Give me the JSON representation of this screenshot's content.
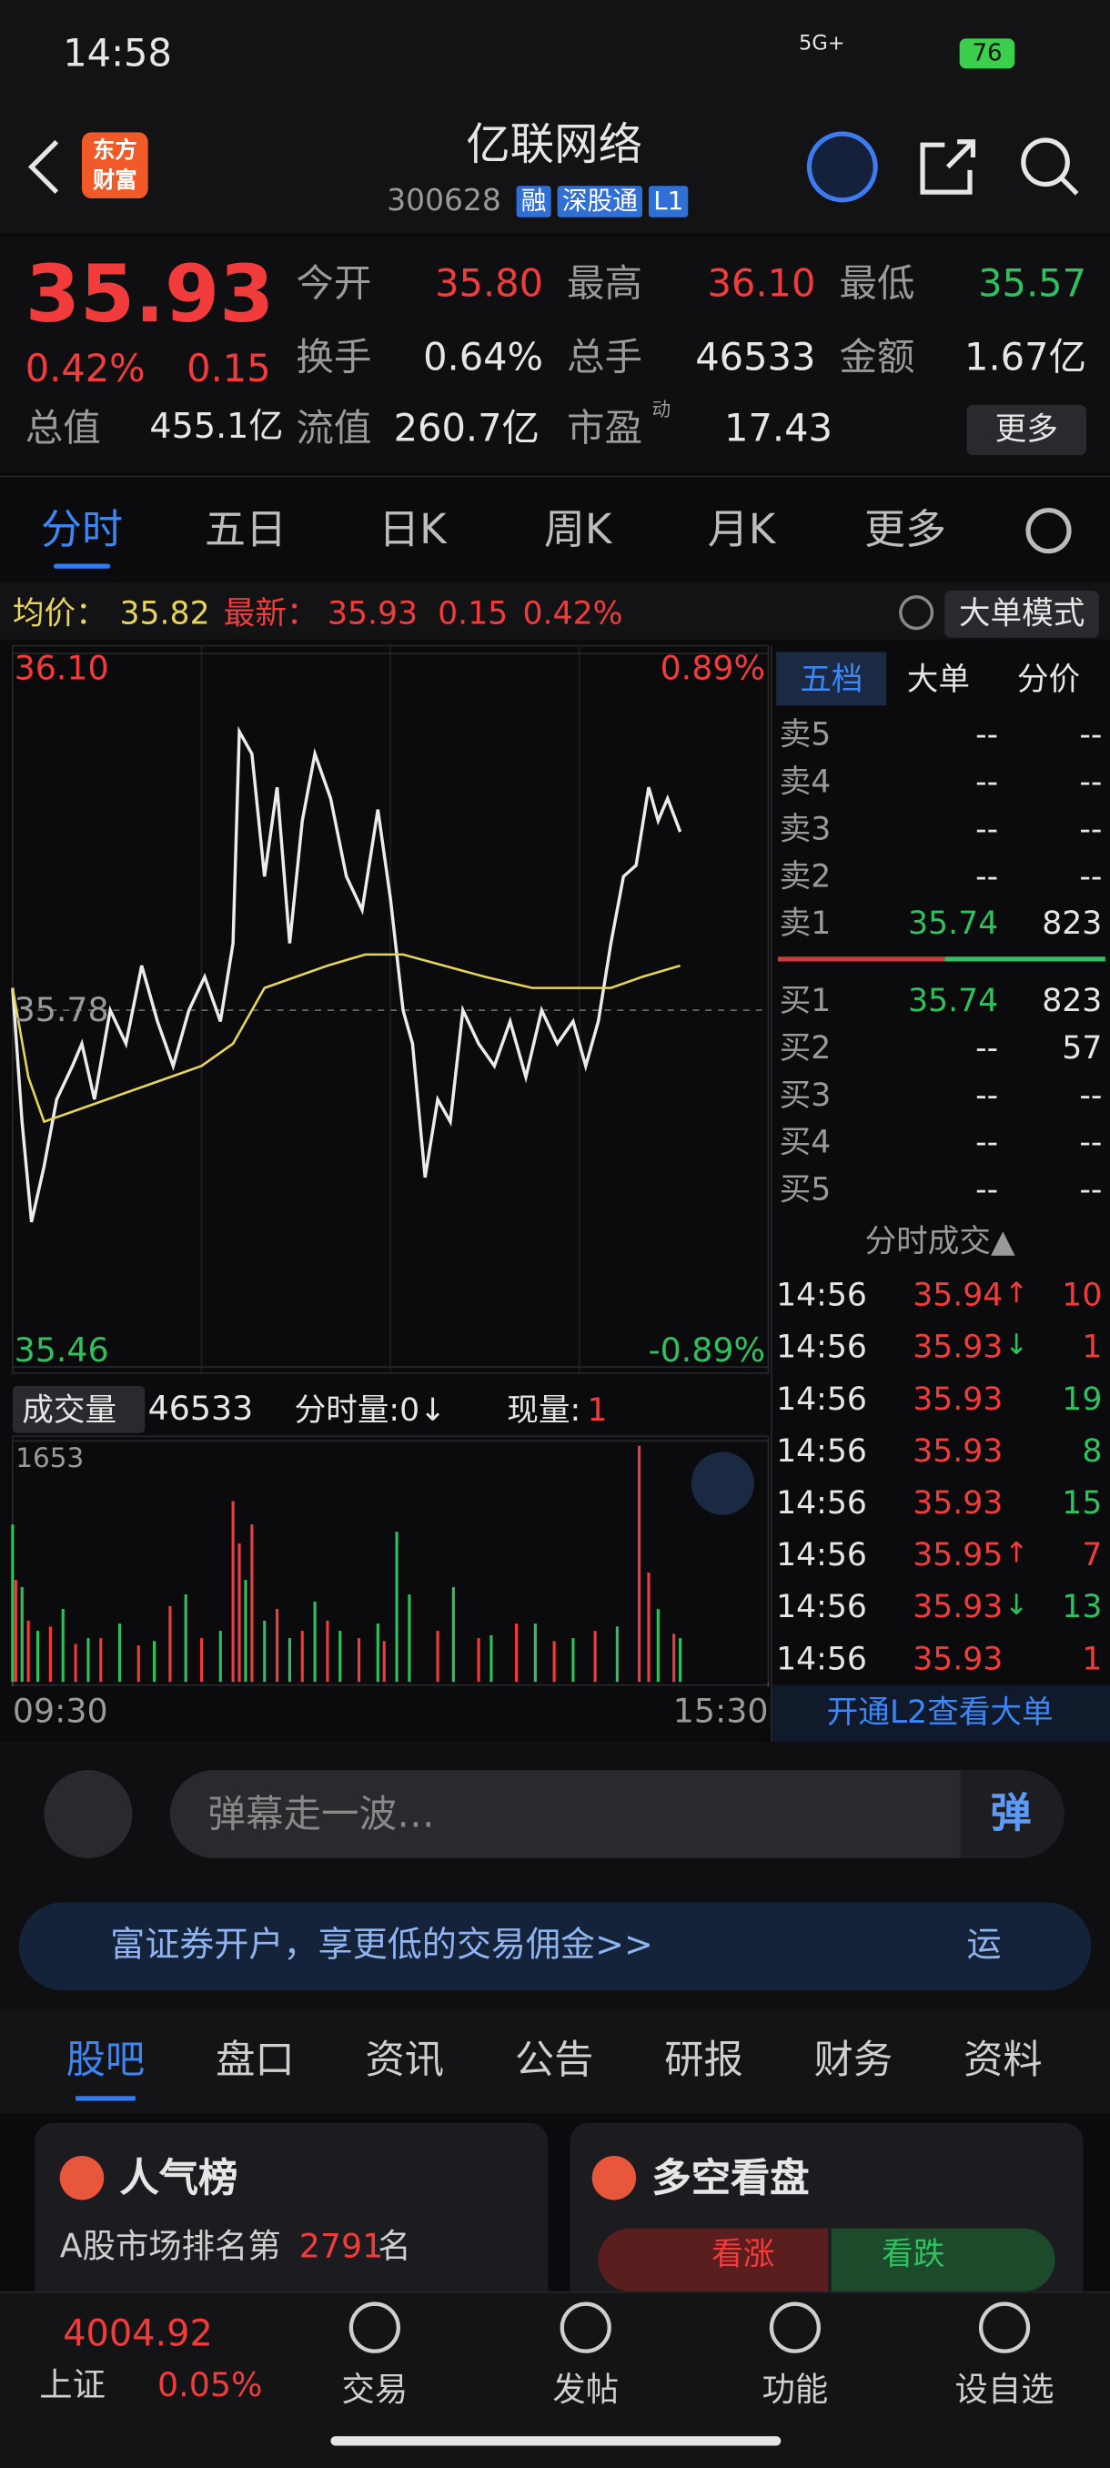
{
  "status_bar": {
    "time": "14:58",
    "network": "5G+",
    "battery": "76"
  },
  "header": {
    "logo": [
      "东方",
      "财富"
    ],
    "title": "亿联网络",
    "code": "300628",
    "tags": [
      "融",
      "深股通",
      "L1"
    ]
  },
  "quote": {
    "price": "35.93",
    "change_pct": "0.42%",
    "change": "0.15",
    "fields": [
      {
        "label": "今开",
        "value": "35.80",
        "color": "#f23c3c"
      },
      {
        "label": "最高",
        "value": "36.10",
        "color": "#f23c3c"
      },
      {
        "label": "最低",
        "value": "35.57",
        "color": "#2fc15f"
      },
      {
        "label": "换手",
        "value": "0.64%"
      },
      {
        "label": "总手",
        "value": "46533"
      },
      {
        "label": "金额",
        "value": "1.67亿"
      },
      {
        "label": "总值",
        "value": "455.1亿"
      },
      {
        "label": "流值",
        "value": "260.7亿"
      },
      {
        "label": "市盈",
        "sup": "动",
        "value": "17.43"
      }
    ],
    "more": "更多"
  },
  "chart_tabs": [
    "分时",
    "五日",
    "日K",
    "周K",
    "月K",
    "更多"
  ],
  "info_line": {
    "avg_label": "均价：",
    "avg": "35.82",
    "last_label": "最新：",
    "last": "35.93",
    "change": "0.15",
    "change_pct": "0.42%",
    "mode": "大单模式"
  },
  "chart_data": [
    {
      "type": "line",
      "ylim": [
        35.46,
        36.1
      ],
      "yticks": [
        {
          "value": 36.1,
          "label": "36.10"
        },
        {
          "value": 35.78,
          "label": "35.78"
        },
        {
          "value": 35.46,
          "label": "35.46"
        }
      ],
      "pct_labels": [
        "0.89%",
        "-0.89%"
      ],
      "xlim": [
        0,
        240
      ],
      "series": [
        {
          "color": "#ececec",
          "x": [
            0,
            3,
            6,
            10,
            14,
            19,
            22,
            26,
            31,
            36,
            41,
            46,
            51,
            56,
            61,
            66,
            70,
            72,
            76,
            80,
            84,
            88,
            92,
            96,
            101,
            106,
            111,
            116,
            120,
            124,
            127,
            131,
            135,
            139,
            143,
            148,
            153,
            158,
            163,
            168,
            173,
            178,
            182,
            186,
            190,
            194,
            198,
            202,
            205,
            208,
            212
          ],
          "values": [
            35.8,
            35.68,
            35.59,
            35.64,
            35.7,
            35.73,
            35.75,
            35.7,
            35.78,
            35.75,
            35.82,
            35.77,
            35.73,
            35.78,
            35.81,
            35.77,
            35.84,
            36.03,
            36.01,
            35.9,
            35.98,
            35.84,
            35.95,
            36.01,
            35.97,
            35.9,
            35.87,
            35.96,
            35.88,
            35.78,
            35.75,
            35.63,
            35.7,
            35.68,
            35.78,
            35.75,
            35.73,
            35.77,
            35.72,
            35.78,
            35.75,
            35.77,
            35.73,
            35.77,
            35.84,
            35.9,
            35.91,
            35.98,
            35.95,
            35.97,
            35.94
          ]
        },
        {
          "color": "#e6d55a",
          "x": [
            0,
            5,
            10,
            20,
            30,
            40,
            50,
            60,
            70,
            80,
            90,
            100,
            112,
            124,
            137,
            150,
            165,
            180,
            190,
            200,
            212
          ],
          "values": [
            35.8,
            35.72,
            35.68,
            35.69,
            35.7,
            35.71,
            35.72,
            35.73,
            35.75,
            35.8,
            35.81,
            35.82,
            35.83,
            35.83,
            35.82,
            35.81,
            35.8,
            35.8,
            35.8,
            35.81,
            35.82
          ]
        }
      ]
    },
    {
      "type": "bar",
      "header": {
        "label": "成交量",
        "total": "46533",
        "period_volume": "分时量:0↓",
        "current_label": "现量:",
        "current": "1"
      },
      "ylim": [
        0,
        1653
      ],
      "yticks": [
        1653
      ],
      "xlim": [
        0,
        240
      ],
      "xticks": [
        {
          "value": 0,
          "label": "09:30"
        },
        {
          "value": 240,
          "label": "15:30"
        }
      ],
      "series": [
        {
          "color": "#f23c3c",
          "x": [
            1,
            5,
            12,
            20,
            28,
            40,
            50,
            60,
            70,
            72,
            76,
            84,
            92,
            100,
            110,
            118,
            135,
            148,
            160,
            172,
            185,
            199,
            202,
            210
          ],
          "values": [
            700,
            420,
            380,
            260,
            300,
            250,
            520,
            300,
            1240,
            950,
            1080,
            500,
            350,
            420,
            300,
            280,
            350,
            300,
            400,
            280,
            350,
            1620,
            750,
            330
          ]
        },
        {
          "color": "#2fc15f",
          "x": [
            0,
            3,
            8,
            16,
            24,
            34,
            45,
            55,
            66,
            74,
            80,
            88,
            96,
            104,
            116,
            122,
            126,
            140,
            152,
            166,
            178,
            192,
            205,
            212
          ],
          "values": [
            1080,
            650,
            350,
            500,
            300,
            400,
            280,
            600,
            350,
            700,
            420,
            300,
            550,
            350,
            400,
            1030,
            600,
            650,
            320,
            400,
            300,
            380,
            500,
            300
          ]
        }
      ]
    }
  ],
  "order_book": {
    "tabs": [
      "五档",
      "大单",
      "分价"
    ],
    "sell": [
      {
        "label": "卖5",
        "price": "--",
        "volume": "--"
      },
      {
        "label": "卖4",
        "price": "--",
        "volume": "--"
      },
      {
        "label": "卖3",
        "price": "--",
        "volume": "--"
      },
      {
        "label": "卖2",
        "price": "--",
        "volume": "--"
      },
      {
        "label": "卖1",
        "price": "35.74",
        "volume": "823"
      }
    ],
    "buy": [
      {
        "label": "买1",
        "price": "35.74",
        "volume": "823"
      },
      {
        "label": "买2",
        "price": "--",
        "volume": "57"
      },
      {
        "label": "买3",
        "price": "--",
        "volume": "--"
      },
      {
        "label": "买4",
        "price": "--",
        "volume": "--"
      },
      {
        "label": "买5",
        "price": "--",
        "volume": "--"
      }
    ]
  },
  "trades": {
    "title": "分时成交▲",
    "rows": [
      {
        "time": "14:56",
        "price": "35.94",
        "dir": "↑",
        "volume": "10",
        "color": "#f23c3c"
      },
      {
        "time": "14:56",
        "price": "35.93",
        "dir": "↓",
        "volume": "1",
        "color": "#f23c3c"
      },
      {
        "time": "14:56",
        "price": "35.93",
        "volume": "19",
        "color": "#2fc15f"
      },
      {
        "time": "14:56",
        "price": "35.93",
        "volume": "8",
        "color": "#2fc15f"
      },
      {
        "time": "14:56",
        "price": "35.93",
        "volume": "15",
        "color": "#2fc15f"
      },
      {
        "time": "14:56",
        "price": "35.95",
        "dir": "↑",
        "volume": "7",
        "color": "#f23c3c"
      },
      {
        "time": "14:56",
        "price": "35.93",
        "dir": "↓",
        "volume": "13",
        "color": "#2fc15f"
      },
      {
        "time": "14:56",
        "price": "35.93",
        "volume": "1",
        "color": "#f23c3c"
      }
    ],
    "promo": "开通L2查看大单"
  },
  "comment": {
    "placeholder": "弹幕走一波…",
    "button": "弹"
  },
  "banner": {
    "text": "富证券开户，享更低的交易佣金>>",
    "tail": "运"
  },
  "tabs": [
    "股吧",
    "盘口",
    "资讯",
    "公告",
    "研报",
    "财务",
    "资料"
  ],
  "cards": [
    {
      "title": "人气榜",
      "text": "A股市场排名第",
      "rank": "2791",
      "suffix": "名"
    },
    {
      "title": "多空看盘",
      "up": "看涨",
      "down": "看跌"
    }
  ],
  "bottom_nav": {
    "index_value": "4004.92",
    "index_name": "上证",
    "index_change": "0.05%",
    "items": [
      "交易",
      "发帖",
      "功能",
      "设自选"
    ]
  }
}
